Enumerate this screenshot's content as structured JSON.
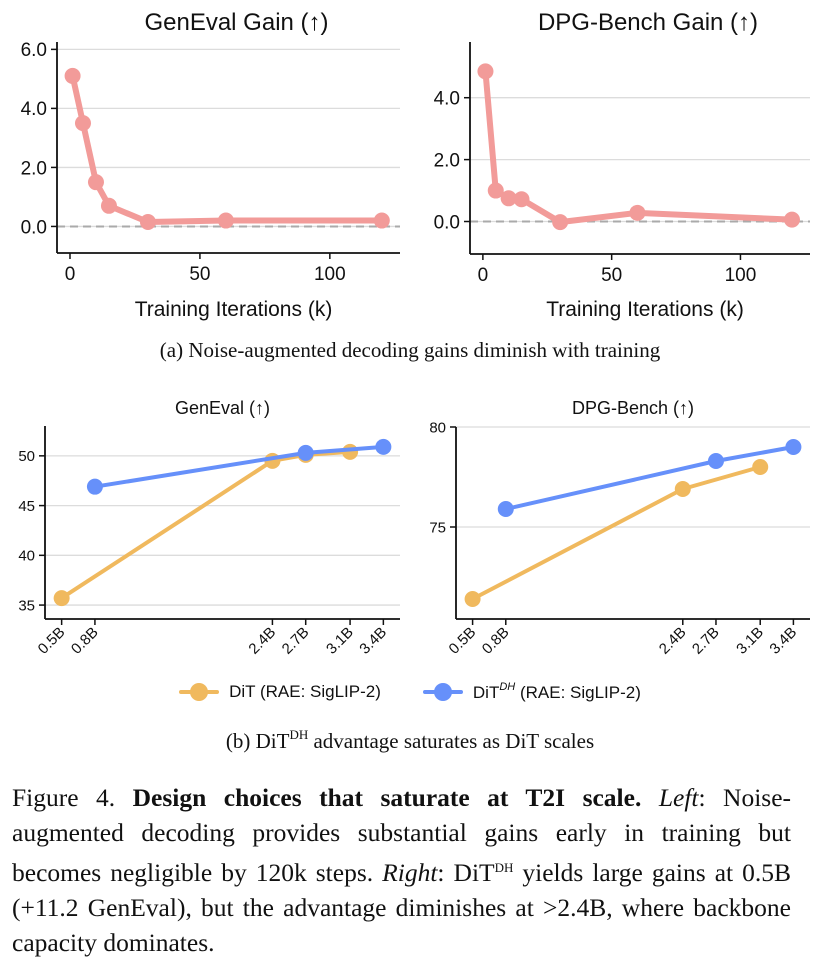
{
  "subfigure_a": {
    "caption": "(a) Noise-augmented decoding gains diminish with training"
  },
  "subfigure_b": {
    "caption_prefix": "(b) DiT",
    "caption_sup": "DH",
    "caption_suffix": " advantage saturates as DiT scales",
    "legend": [
      {
        "label": "DiT (RAE: SigLIP-2)",
        "base": "DiT",
        "sup": "",
        "rest": " (RAE: SigLIP-2)",
        "color": "#F0B95E"
      },
      {
        "label": "DiT^DH (RAE: SigLIP-2)",
        "base": "DiT",
        "sup": "DH",
        "rest": " (RAE: SigLIP-2)",
        "color": "#6690FA"
      }
    ]
  },
  "figure_caption": {
    "label": "Figure 4.",
    "bold": "Design choices that saturate at T2I scale.",
    "left_label": "Left",
    "left_text": ": Noise-augmented decoding provides substantial gains early in training but becomes negligible by 120k steps.",
    "right_label": "Right",
    "right_text_1": ": DiT",
    "right_sup": "DH",
    "right_text_2": " yields large gains at 0.5B (+11.2 GenEval), but the advantage diminishes at >2.4B, where backbone capacity dominates."
  },
  "chart_data": [
    {
      "id": "geneval-gain",
      "type": "line",
      "title": "GenEval Gain (↑)",
      "xlabel": "Training Iterations (k)",
      "ylabel": "",
      "xlim": [
        -5,
        127
      ],
      "ylim": [
        -0.9,
        6.25
      ],
      "xticks": [
        0,
        50,
        100
      ],
      "xtick_labels": [
        "0",
        "50",
        "100"
      ],
      "yticks": [
        0,
        2,
        4,
        6
      ],
      "ytick_labels": [
        "0.0",
        "2.0",
        "4.0",
        "6.0"
      ],
      "grid": "horizontal",
      "reference_line": 0,
      "series": [
        {
          "name": "Gain",
          "color": "#F29B99",
          "x": [
            1,
            5,
            10,
            15,
            30,
            60,
            120
          ],
          "y": [
            5.1,
            3.5,
            1.5,
            0.7,
            0.15,
            0.2,
            0.2
          ]
        }
      ]
    },
    {
      "id": "dpg-gain",
      "type": "line",
      "title": "DPG-Bench Gain (↑)",
      "xlabel": "Training Iterations (k)",
      "ylabel": "",
      "xlim": [
        -5,
        127
      ],
      "ylim": [
        -1.05,
        5.8
      ],
      "xticks": [
        0,
        50,
        100
      ],
      "xtick_labels": [
        "0",
        "50",
        "100"
      ],
      "yticks": [
        0,
        2,
        4
      ],
      "ytick_labels": [
        "0.0",
        "2.0",
        "4.0"
      ],
      "grid": "horizontal",
      "reference_line": 0,
      "series": [
        {
          "name": "Gain",
          "color": "#F29B99",
          "x": [
            1,
            5,
            10,
            15,
            30,
            60,
            120
          ],
          "y": [
            4.85,
            1.0,
            0.75,
            0.72,
            -0.02,
            0.28,
            0.06
          ]
        }
      ]
    },
    {
      "id": "geneval-scaling",
      "type": "line",
      "title": "GenEval (↑)",
      "xlabel": "",
      "ylabel": "",
      "categories": [
        "0.5B",
        "0.8B",
        "2.4B",
        "2.7B",
        "3.1B",
        "3.4B"
      ],
      "x_numeric": [
        0.5,
        0.8,
        2.4,
        2.7,
        3.1,
        3.4
      ],
      "xlim": [
        0.35,
        3.55
      ],
      "ylim": [
        33.6,
        53.0
      ],
      "yticks": [
        35,
        40,
        45,
        50
      ],
      "ytick_labels": [
        "35",
        "40",
        "45",
        "50"
      ],
      "grid": "horizontal",
      "legend": "bottom-center",
      "series": [
        {
          "name": "DiT (RAE: SigLIP-2)",
          "color": "#F0B95E",
          "x": [
            0.5,
            2.4,
            2.7,
            3.1
          ],
          "y": [
            35.7,
            49.5,
            50.1,
            50.4
          ]
        },
        {
          "name": "DiT^DH (RAE: SigLIP-2)",
          "color": "#6690FA",
          "x": [
            0.8,
            2.7,
            3.4
          ],
          "y": [
            46.9,
            50.3,
            50.9
          ]
        }
      ]
    },
    {
      "id": "dpg-scaling",
      "type": "line",
      "title": "DPG-Bench (↑)",
      "xlabel": "",
      "ylabel": "",
      "categories": [
        "0.5B",
        "0.8B",
        "2.4B",
        "2.7B",
        "3.1B",
        "3.4B"
      ],
      "x_numeric": [
        0.5,
        0.8,
        2.4,
        2.7,
        3.1,
        3.4
      ],
      "xlim": [
        0.35,
        3.55
      ],
      "ylim": [
        70.4,
        80.0
      ],
      "yticks": [
        75,
        80
      ],
      "ytick_labels": [
        "75",
        "80"
      ],
      "grid": "horizontal",
      "legend": "bottom-center",
      "series": [
        {
          "name": "DiT (RAE: SigLIP-2)",
          "color": "#F0B95E",
          "x": [
            0.5,
            2.4,
            3.1
          ],
          "y": [
            71.4,
            76.9,
            78.0
          ]
        },
        {
          "name": "DiT^DH (RAE: SigLIP-2)",
          "color": "#6690FA",
          "x": [
            0.8,
            2.7,
            3.4
          ],
          "y": [
            75.9,
            78.3,
            79.0
          ]
        }
      ]
    }
  ]
}
